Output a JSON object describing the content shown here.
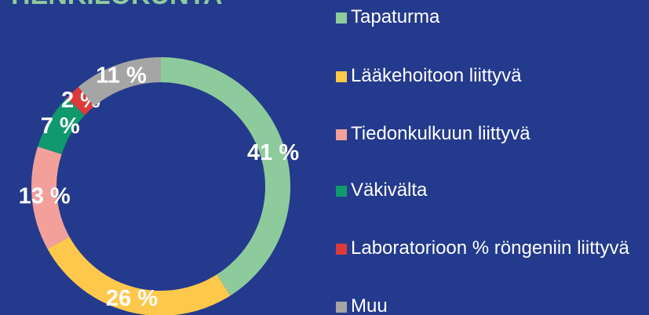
{
  "chart_data": {
    "type": "donut",
    "title": "HENKILÖKUNTA",
    "categories": [
      "Tapaturma",
      "Lääkehoitoon liittyvä",
      "Tiedonkulkuun liittyvä",
      "Väkivälta",
      "Laboratorioon % röngeniin liittyvä",
      "Muu"
    ],
    "values": [
      41,
      26,
      13,
      7,
      2,
      11
    ],
    "value_labels": [
      "41 %",
      "26 %",
      "13 %",
      "7 %",
      "2 %",
      "11 %"
    ],
    "colors": [
      "#8ecb9c",
      "#fdc84b",
      "#f3a09b",
      "#10996c",
      "#db3a3a",
      "#a5a5a5"
    ],
    "legend": "right"
  }
}
